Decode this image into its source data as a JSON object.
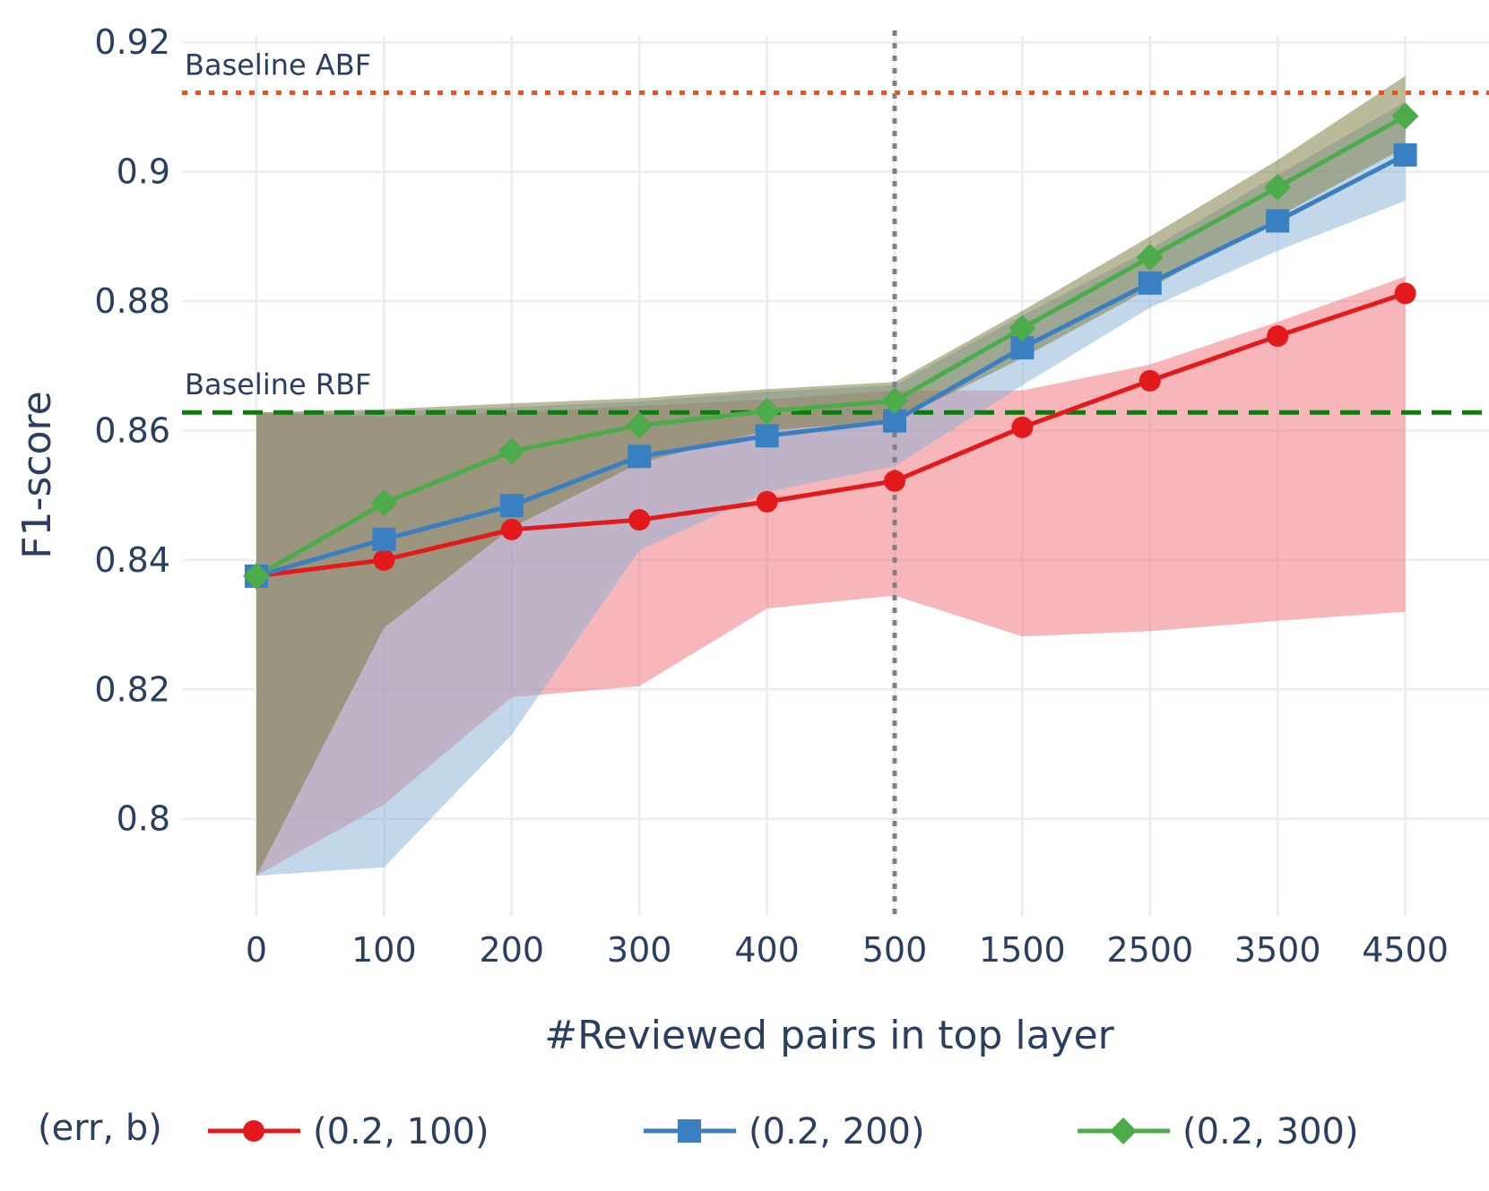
{
  "chart_data": {
    "type": "line",
    "xlabel": "#Reviewed pairs in top layer",
    "ylabel": "F1-score",
    "categories": [
      "0",
      "100",
      "200",
      "300",
      "400",
      "500",
      "1500",
      "2500",
      "3500",
      "4500"
    ],
    "y_ticks": [
      "0.92",
      "0.9",
      "0.88",
      "0.86",
      "0.84",
      "0.82",
      "0.8"
    ],
    "y_tick_values": [
      0.92,
      0.9,
      0.88,
      0.86,
      0.84,
      0.82,
      0.8
    ],
    "ylim": [
      0.785,
      0.921
    ],
    "grid": true,
    "legend": {
      "title": "(err, b)",
      "position": "bottom"
    },
    "series": [
      {
        "name": "(0.2, 100)",
        "color": "#e31a1c",
        "band_color": "rgba(240,110,115,0.5)",
        "marker": "circle",
        "values": [
          0.8375,
          0.84,
          0.8447,
          0.8462,
          0.849,
          0.8522,
          0.8605,
          0.8677,
          0.8746,
          0.8812
        ],
        "upper": [
          0.8628,
          0.8622,
          0.8628,
          0.8638,
          0.8648,
          0.8662,
          0.8662,
          0.8702,
          0.8768,
          0.8838
        ],
        "lower": [
          0.7912,
          0.8022,
          0.8188,
          0.8205,
          0.8325,
          0.8345,
          0.8282,
          0.829,
          0.8306,
          0.832
        ]
      },
      {
        "name": "(0.2, 200)",
        "color": "#3a7fc1",
        "band_color": "rgba(135,175,215,0.5)",
        "marker": "square",
        "values": [
          0.8375,
          0.8432,
          0.8484,
          0.856,
          0.8592,
          0.8615,
          0.8728,
          0.8828,
          0.8924,
          0.9026
        ],
        "upper": [
          0.8628,
          0.863,
          0.8636,
          0.8645,
          0.866,
          0.867,
          0.8778,
          0.888,
          0.8995,
          0.9108
        ],
        "lower": [
          0.7912,
          0.7925,
          0.813,
          0.8415,
          0.8505,
          0.8545,
          0.867,
          0.879,
          0.8878,
          0.8955
        ]
      },
      {
        "name": "(0.2, 300)",
        "color": "#4dac4a",
        "band_color": "rgba(120,120,55,0.5)",
        "marker": "diamond",
        "values": [
          0.8375,
          0.8488,
          0.8568,
          0.8608,
          0.863,
          0.8646,
          0.8758,
          0.8868,
          0.8976,
          0.9086
        ],
        "upper": [
          0.8628,
          0.8633,
          0.8642,
          0.865,
          0.8664,
          0.8675,
          0.8785,
          0.89,
          0.9018,
          0.9148
        ],
        "lower": [
          0.7912,
          0.8295,
          0.845,
          0.855,
          0.86,
          0.8615,
          0.8712,
          0.882,
          0.893,
          0.9038
        ]
      }
    ],
    "reference_lines": [
      {
        "label": "Baseline ABF",
        "value": 0.9122,
        "color": "#ff4a10",
        "style": "dotted"
      },
      {
        "label": "Baseline RBF",
        "value": 0.8628,
        "color": "#0f7a0f",
        "style": "dashed"
      }
    ],
    "vertical_line": {
      "at_category": "500",
      "color": "#808080",
      "style": "dotted"
    }
  }
}
